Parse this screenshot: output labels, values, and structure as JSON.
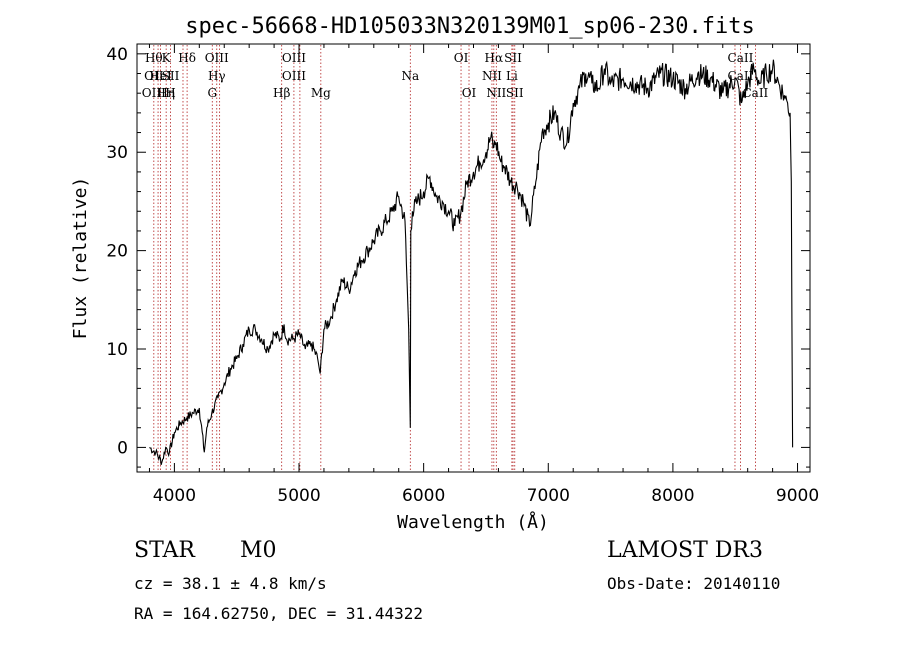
{
  "chart_data": {
    "type": "line",
    "title": "spec-56668-HD105033N320139M01_sp06-230.fits",
    "xlabel": "Wavelength (Å)",
    "ylabel": "Flux (relative)",
    "xlim": [
      3700,
      9100
    ],
    "ylim": [
      -2.5,
      41
    ],
    "xticks": [
      4000,
      5000,
      6000,
      7000,
      8000,
      9000
    ],
    "yticks": [
      0,
      10,
      20,
      30,
      40
    ],
    "grid": false,
    "series": [
      {
        "name": "flux",
        "x": [
          3800,
          3850,
          3900,
          3930,
          3960,
          4000,
          4050,
          4100,
          4150,
          4200,
          4240,
          4260,
          4300,
          4350,
          4400,
          4450,
          4500,
          4550,
          4600,
          4650,
          4700,
          4750,
          4800,
          4850,
          4880,
          4900,
          4950,
          5000,
          5050,
          5100,
          5150,
          5170,
          5200,
          5250,
          5300,
          5350,
          5400,
          5450,
          5500,
          5550,
          5600,
          5650,
          5700,
          5750,
          5800,
          5850,
          5880,
          5893,
          5897,
          5910,
          5950,
          6000,
          6050,
          6100,
          6150,
          6200,
          6250,
          6300,
          6350,
          6400,
          6450,
          6500,
          6540,
          6563,
          6580,
          6620,
          6650,
          6700,
          6750,
          6800,
          6850,
          6900,
          6950,
          7000,
          7050,
          7100,
          7150,
          7200,
          7250,
          7300,
          7350,
          7400,
          7450,
          7500,
          7600,
          7700,
          7800,
          7900,
          8000,
          8100,
          8200,
          8300,
          8400,
          8500,
          8550,
          8600,
          8650,
          8700,
          8750,
          8800,
          8850,
          8900,
          8920,
          8940,
          8950,
          8960
        ],
        "y": [
          0,
          -0.5,
          -1.5,
          0,
          -0.5,
          1.5,
          2.5,
          3,
          3.5,
          4,
          -0.5,
          2,
          3.5,
          5,
          6.5,
          8,
          9,
          10.5,
          12,
          12,
          11,
          10,
          11.5,
          11,
          12.5,
          11,
          11,
          11.5,
          10,
          10.5,
          9,
          7.5,
          12,
          13,
          15,
          17,
          16,
          18,
          19,
          20,
          21,
          22,
          23,
          24,
          25.5,
          23,
          12,
          2,
          22,
          24,
          25,
          26,
          27.5,
          25.5,
          25,
          24,
          22.5,
          24,
          27,
          28,
          29,
          30,
          31.5,
          30.5,
          31,
          29,
          28.5,
          27,
          26.5,
          25,
          22.5,
          27,
          32,
          33,
          34,
          32,
          31,
          35,
          36.5,
          38,
          37,
          36.5,
          38.5,
          37,
          37.5,
          37,
          36.5,
          38,
          37.5,
          36.5,
          38,
          37.5,
          36,
          37.5,
          35,
          37,
          38.5,
          37,
          38,
          38.5,
          37,
          35.5,
          35,
          34,
          27,
          0
        ]
      }
    ],
    "line_markers": [
      {
        "wavelength": 3835,
        "labels": [
          "Hθ",
          "OII",
          "OIII"
        ]
      },
      {
        "wavelength": 3869,
        "labels": []
      },
      {
        "wavelength": 3889,
        "labels": [
          "",
          "HeI"
        ]
      },
      {
        "wavelength": 3934,
        "labels": [
          "K",
          "",
          "Hη"
        ]
      },
      {
        "wavelength": 3969,
        "labels": [
          "",
          "SII",
          "H"
        ]
      },
      {
        "wavelength": 4069,
        "labels": []
      },
      {
        "wavelength": 4102,
        "labels": [
          "Hδ"
        ]
      },
      {
        "wavelength": 4304,
        "labels": [
          "",
          "",
          "G"
        ]
      },
      {
        "wavelength": 4340,
        "labels": [
          "OIII",
          "Hγ"
        ]
      },
      {
        "wavelength": 4363,
        "labels": []
      },
      {
        "wavelength": 4861,
        "labels": [
          "",
          "",
          "Hβ"
        ]
      },
      {
        "wavelength": 4959,
        "labels": [
          "OIII",
          "OIII"
        ]
      },
      {
        "wavelength": 5007,
        "labels": []
      },
      {
        "wavelength": 5175,
        "labels": [
          "",
          "",
          "Mg"
        ]
      },
      {
        "wavelength": 5893,
        "labels": [
          "",
          "Na"
        ]
      },
      {
        "wavelength": 6300,
        "labels": [
          "OI"
        ]
      },
      {
        "wavelength": 6364,
        "labels": [
          "",
          "",
          "OI"
        ]
      },
      {
        "wavelength": 6548,
        "labels": [
          "",
          "NII"
        ]
      },
      {
        "wavelength": 6563,
        "labels": [
          "Hα"
        ]
      },
      {
        "wavelength": 6583,
        "labels": [
          "",
          "",
          "NII"
        ]
      },
      {
        "wavelength": 6708,
        "labels": [
          "",
          "Li"
        ]
      },
      {
        "wavelength": 6717,
        "labels": [
          "SII"
        ]
      },
      {
        "wavelength": 6731,
        "labels": [
          "",
          "",
          "SII"
        ]
      },
      {
        "wavelength": 8498,
        "labels": []
      },
      {
        "wavelength": 8542,
        "labels": [
          "CaII",
          "CaII"
        ]
      },
      {
        "wavelength": 8662,
        "labels": [
          "",
          "",
          "CaII"
        ]
      }
    ]
  },
  "info": {
    "object_class": "STAR",
    "subclass": "M0",
    "survey": "LAMOST DR3",
    "cz_line": "cz = 38.1 ± 4.8 km/s",
    "obs_date": "Obs-Date: 20140110",
    "radec_line": "RA = 164.62750, DEC =  31.44322"
  },
  "colors": {
    "spectrum": "#000000",
    "line_marker": "#b22222",
    "axis": "#000000"
  }
}
